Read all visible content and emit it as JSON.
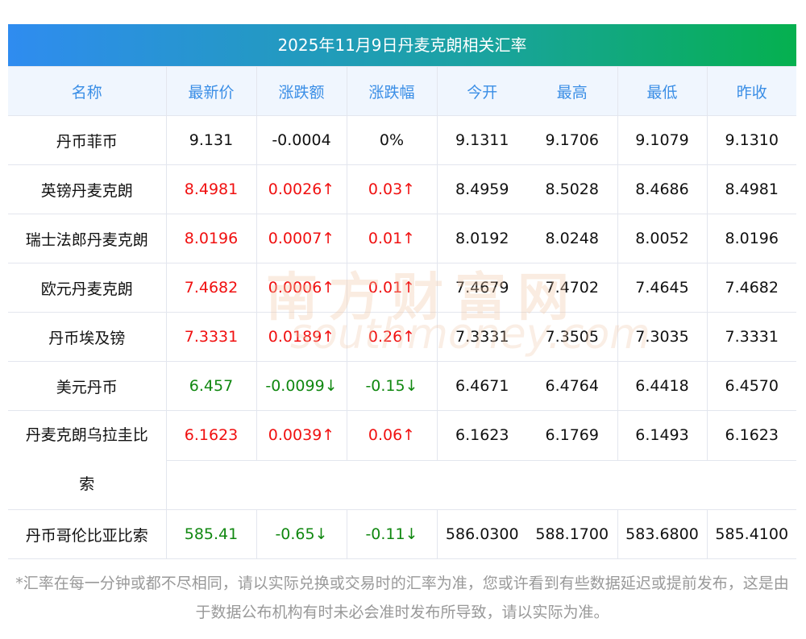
{
  "title": "2025年11月9日丹麦克朗相关汇率",
  "headers": [
    "名称",
    "最新价",
    "涨跌额",
    "涨跌幅",
    "今开",
    "最高",
    "最低",
    "昨收"
  ],
  "rows": [
    {
      "name": "丹币菲币",
      "latest": "9.131",
      "change": "-0.0004",
      "pct": "0%",
      "open": "9.1311",
      "high": "9.1706",
      "low": "9.1079",
      "prev": "9.1310",
      "dir": "flat"
    },
    {
      "name": "英镑丹麦克朗",
      "latest": "8.4981",
      "change": "0.0026↑",
      "pct": "0.03↑",
      "open": "8.4959",
      "high": "8.5028",
      "low": "8.4686",
      "prev": "8.4981",
      "dir": "up"
    },
    {
      "name": "瑞士法郎丹麦克朗",
      "latest": "8.0196",
      "change": "0.0007↑",
      "pct": "0.01↑",
      "open": "8.0192",
      "high": "8.0248",
      "low": "8.0052",
      "prev": "8.0196",
      "dir": "up"
    },
    {
      "name": "欧元丹麦克朗",
      "latest": "7.4682",
      "change": "0.0006↑",
      "pct": "0.01↑",
      "open": "7.4679",
      "high": "7.4702",
      "low": "7.4645",
      "prev": "7.4682",
      "dir": "up"
    },
    {
      "name": "丹币埃及镑",
      "latest": "7.3331",
      "change": "0.0189↑",
      "pct": "0.26↑",
      "open": "7.3331",
      "high": "7.3505",
      "low": "7.3035",
      "prev": "7.3331",
      "dir": "up"
    },
    {
      "name": "美元丹币",
      "latest": "6.457",
      "change": "-0.0099↓",
      "pct": "-0.15↓",
      "open": "6.4671",
      "high": "6.4764",
      "low": "6.4418",
      "prev": "6.4570",
      "dir": "down"
    },
    {
      "name": "丹麦克朗乌拉圭比",
      "name_line2": "索",
      "latest": "6.1623",
      "change": "0.0039↑",
      "pct": "0.06↑",
      "open": "6.1623",
      "high": "6.1769",
      "low": "6.1493",
      "prev": "6.1623",
      "dir": "up"
    },
    {
      "name": "丹币哥伦比亚比索",
      "latest": "585.41",
      "change": "-0.65↓",
      "pct": "-0.11↓",
      "open": "586.0300",
      "high": "588.1700",
      "low": "583.6800",
      "prev": "585.4100",
      "dir": "down"
    }
  ],
  "note": "*汇率在每一分钟或都不尽相同，请以实际兑换或交易时的汇率为准，您或许看到有些数据延迟或提前发布，这是由于数据公布机构有时未必会准时发布所导致，请以实际为准。",
  "watermark": {
    "cn": "南方财富网",
    "en": "southmoney.com"
  },
  "colors": {
    "up": "#f01010",
    "down": "#118811",
    "header_text": "#3a8ee6"
  }
}
